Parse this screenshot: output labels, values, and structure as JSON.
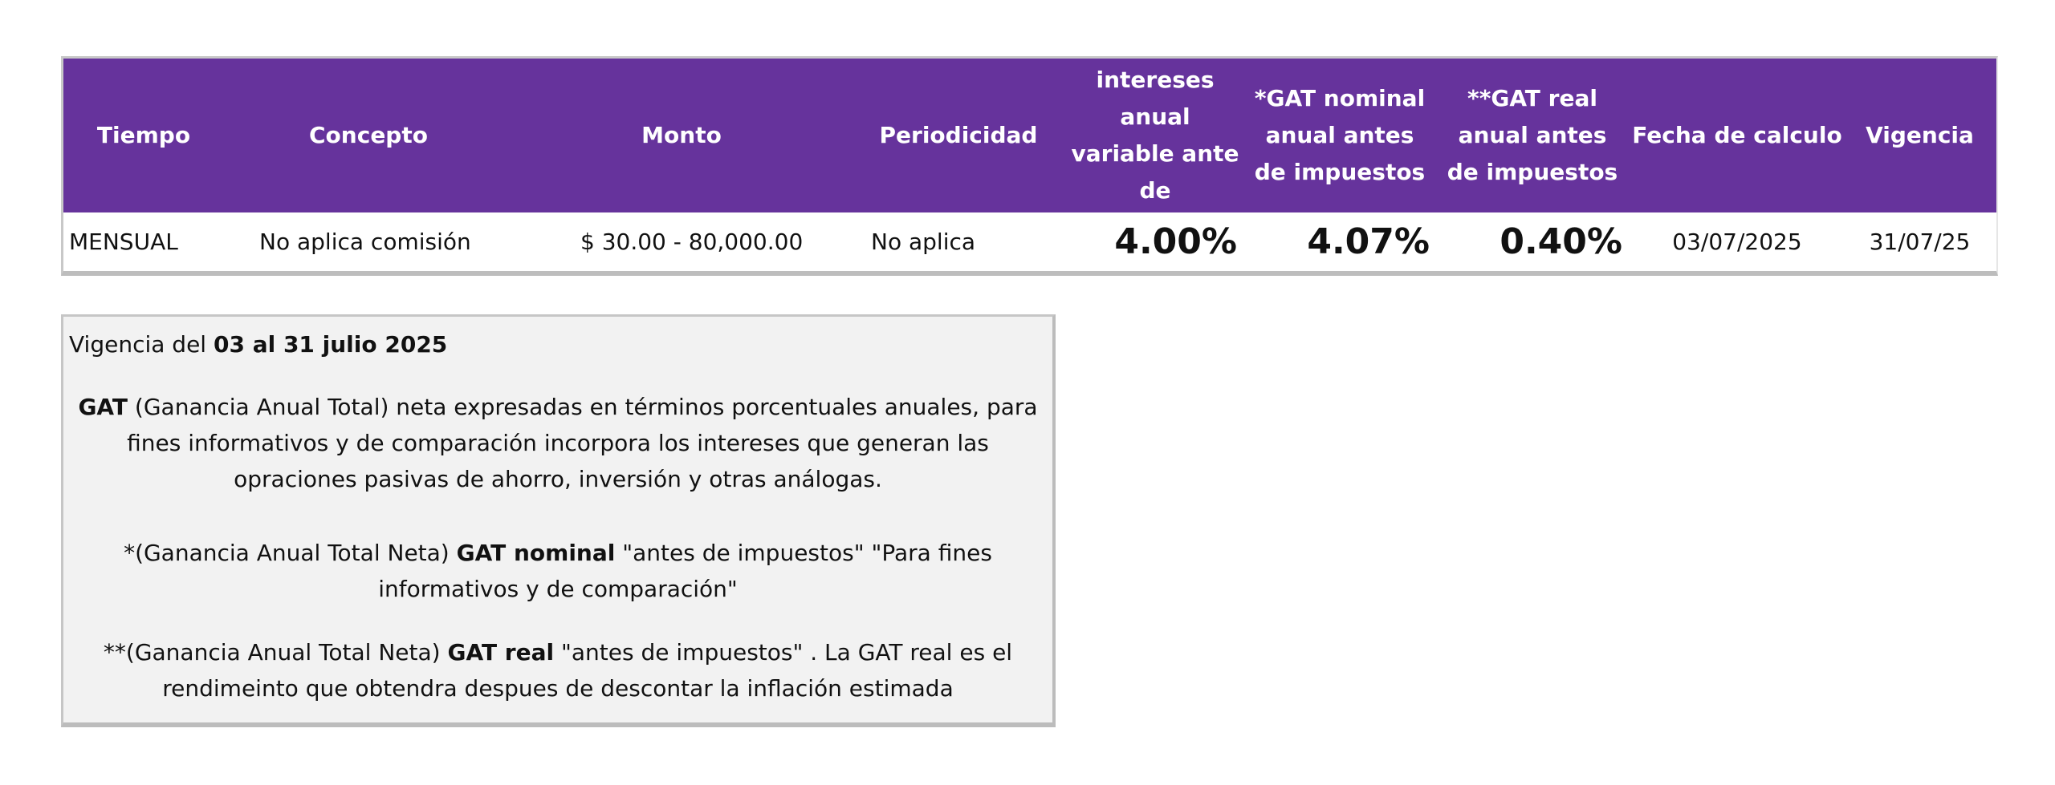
{
  "table": {
    "headers": [
      "Tiempo",
      "Concepto",
      "Monto",
      "Periodicidad",
      "Tasa de intereses anual variable ante de impuestos",
      "*GAT nominal anual antes de impuestos",
      "**GAT real anual antes de impuestos",
      "Fecha de calculo",
      "Vigencia"
    ],
    "row": {
      "tiempo": "MENSUAL",
      "concepto": "No aplica comisión",
      "monto": "$ 30.00 - 80,000.00",
      "periodicidad": "No aplica",
      "tasa": "4.00%",
      "gat_nominal": "4.07%",
      "gat_real": "0.40%",
      "fecha_calculo": "03/07/2025",
      "vigencia": "31/07/25"
    },
    "header_color": "#66339c"
  },
  "notes": {
    "vigencia_prefix": "Vigencia del ",
    "vigencia_bold": "03 al 31 julio 2025",
    "gat_bold": "GAT",
    "gat_text": " (Ganancia Anual Total) neta expresadas en términos porcentuales anuales, para fines informativos y de comparación incorpora los intereses que generan las opraciones pasivas de ahorro, inversión y otras análogas.",
    "nominal_prefix": "*(Ganancia Anual Total Neta) ",
    "nominal_bold": "GAT nominal",
    "nominal_text": " \"antes de impuestos\" \"Para fines informativos y de comparación\"",
    "real_prefix": "**(Ganancia Anual Total Neta) ",
    "real_bold": "GAT real",
    "real_text": " \"antes de impuestos\" . La GAT real es el rendimeinto que obtendra despues de descontar la inflación estimada",
    "box_color": "#f2f2f2"
  }
}
